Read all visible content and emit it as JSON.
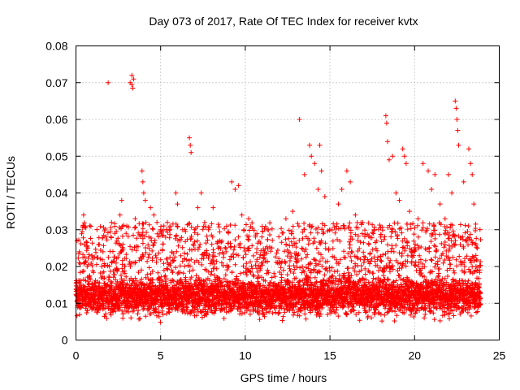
{
  "chart_data": {
    "type": "scatter",
    "title": "Day 073 of 2017, Rate Of TEC Index for receiver kvtx",
    "xlabel": "GPS time / hours",
    "ylabel": "ROTI / TECUs",
    "xlim": [
      0,
      25
    ],
    "ylim": [
      0,
      0.08
    ],
    "x_ticks": [
      0,
      5,
      10,
      15,
      20,
      25
    ],
    "x_tick_labels": [
      "0",
      "5",
      "10",
      "15",
      "20",
      "25"
    ],
    "y_ticks": [
      0,
      0.01,
      0.02,
      0.03,
      0.04,
      0.05,
      0.06,
      0.07,
      0.08
    ],
    "y_tick_labels": [
      "0",
      "0.01",
      "0.02",
      "0.03",
      "0.04",
      "0.05",
      "0.06",
      "0.07",
      "0.08"
    ],
    "grid": true,
    "marker": "plus",
    "color": "#ff0000",
    "series": [
      {
        "name": "ROTI",
        "x_range_hours": [
          0,
          23.9
        ],
        "typical_band": [
          0.005,
          0.02
        ],
        "typical_center": 0.012,
        "spikes": [
          {
            "x": 0.2,
            "y": 0.024
          },
          {
            "x": 0.45,
            "y": 0.034
          },
          {
            "x": 0.55,
            "y": 0.031
          },
          {
            "x": 0.5,
            "y": 0.026
          },
          {
            "x": 0.7,
            "y": 0.025
          },
          {
            "x": 1.0,
            "y": 0.022
          },
          {
            "x": 1.6,
            "y": 0.024
          },
          {
            "x": 1.9,
            "y": 0.07
          },
          {
            "x": 2.1,
            "y": 0.032
          },
          {
            "x": 2.3,
            "y": 0.029
          },
          {
            "x": 2.6,
            "y": 0.034
          },
          {
            "x": 2.7,
            "y": 0.038
          },
          {
            "x": 3.0,
            "y": 0.031
          },
          {
            "x": 3.2,
            "y": 0.07
          },
          {
            "x": 3.3,
            "y": 0.072
          },
          {
            "x": 3.3,
            "y": 0.0695
          },
          {
            "x": 3.35,
            "y": 0.0685
          },
          {
            "x": 3.4,
            "y": 0.071
          },
          {
            "x": 3.5,
            "y": 0.033
          },
          {
            "x": 3.9,
            "y": 0.046
          },
          {
            "x": 3.95,
            "y": 0.043
          },
          {
            "x": 4.0,
            "y": 0.04
          },
          {
            "x": 4.1,
            "y": 0.038
          },
          {
            "x": 4.4,
            "y": 0.036
          },
          {
            "x": 4.6,
            "y": 0.034
          },
          {
            "x": 5.0,
            "y": 0.03
          },
          {
            "x": 5.4,
            "y": 0.032
          },
          {
            "x": 5.9,
            "y": 0.04
          },
          {
            "x": 6.0,
            "y": 0.037
          },
          {
            "x": 6.3,
            "y": 0.03
          },
          {
            "x": 6.7,
            "y": 0.055
          },
          {
            "x": 6.75,
            "y": 0.053
          },
          {
            "x": 6.8,
            "y": 0.051
          },
          {
            "x": 7.0,
            "y": 0.03
          },
          {
            "x": 7.2,
            "y": 0.036
          },
          {
            "x": 7.4,
            "y": 0.04
          },
          {
            "x": 7.6,
            "y": 0.032
          },
          {
            "x": 8.1,
            "y": 0.036
          },
          {
            "x": 8.5,
            "y": 0.027
          },
          {
            "x": 9.2,
            "y": 0.043
          },
          {
            "x": 9.4,
            "y": 0.041
          },
          {
            "x": 9.6,
            "y": 0.042
          },
          {
            "x": 9.8,
            "y": 0.034
          },
          {
            "x": 10.2,
            "y": 0.033
          },
          {
            "x": 10.6,
            "y": 0.028
          },
          {
            "x": 11.3,
            "y": 0.03
          },
          {
            "x": 12.4,
            "y": 0.033
          },
          {
            "x": 12.8,
            "y": 0.035
          },
          {
            "x": 13.2,
            "y": 0.06
          },
          {
            "x": 13.5,
            "y": 0.045
          },
          {
            "x": 13.8,
            "y": 0.053
          },
          {
            "x": 13.9,
            "y": 0.05
          },
          {
            "x": 14.1,
            "y": 0.048
          },
          {
            "x": 14.3,
            "y": 0.041
          },
          {
            "x": 14.4,
            "y": 0.053
          },
          {
            "x": 14.5,
            "y": 0.046
          },
          {
            "x": 14.7,
            "y": 0.039
          },
          {
            "x": 15.0,
            "y": 0.03
          },
          {
            "x": 15.5,
            "y": 0.037
          },
          {
            "x": 15.7,
            "y": 0.041
          },
          {
            "x": 16.0,
            "y": 0.046
          },
          {
            "x": 16.2,
            "y": 0.043
          },
          {
            "x": 16.5,
            "y": 0.034
          },
          {
            "x": 17.3,
            "y": 0.026
          },
          {
            "x": 17.6,
            "y": 0.03
          },
          {
            "x": 18.0,
            "y": 0.028
          },
          {
            "x": 18.3,
            "y": 0.061
          },
          {
            "x": 18.35,
            "y": 0.059
          },
          {
            "x": 18.4,
            "y": 0.054
          },
          {
            "x": 18.5,
            "y": 0.049
          },
          {
            "x": 18.7,
            "y": 0.05
          },
          {
            "x": 18.9,
            "y": 0.04
          },
          {
            "x": 19.1,
            "y": 0.038
          },
          {
            "x": 19.3,
            "y": 0.052
          },
          {
            "x": 19.4,
            "y": 0.05
          },
          {
            "x": 19.5,
            "y": 0.048
          },
          {
            "x": 19.7,
            "y": 0.035
          },
          {
            "x": 20.2,
            "y": 0.033
          },
          {
            "x": 20.5,
            "y": 0.048
          },
          {
            "x": 20.8,
            "y": 0.046
          },
          {
            "x": 21.0,
            "y": 0.041
          },
          {
            "x": 21.2,
            "y": 0.045
          },
          {
            "x": 21.5,
            "y": 0.037
          },
          {
            "x": 21.8,
            "y": 0.033
          },
          {
            "x": 22.0,
            "y": 0.045
          },
          {
            "x": 22.2,
            "y": 0.04
          },
          {
            "x": 22.4,
            "y": 0.065
          },
          {
            "x": 22.45,
            "y": 0.063
          },
          {
            "x": 22.5,
            "y": 0.06
          },
          {
            "x": 22.55,
            "y": 0.057
          },
          {
            "x": 22.6,
            "y": 0.053
          },
          {
            "x": 22.9,
            "y": 0.043
          },
          {
            "x": 23.2,
            "y": 0.052
          },
          {
            "x": 23.3,
            "y": 0.048
          },
          {
            "x": 23.4,
            "y": 0.045
          },
          {
            "x": 23.5,
            "y": 0.037
          },
          {
            "x": 23.7,
            "y": 0.025
          }
        ]
      }
    ]
  }
}
